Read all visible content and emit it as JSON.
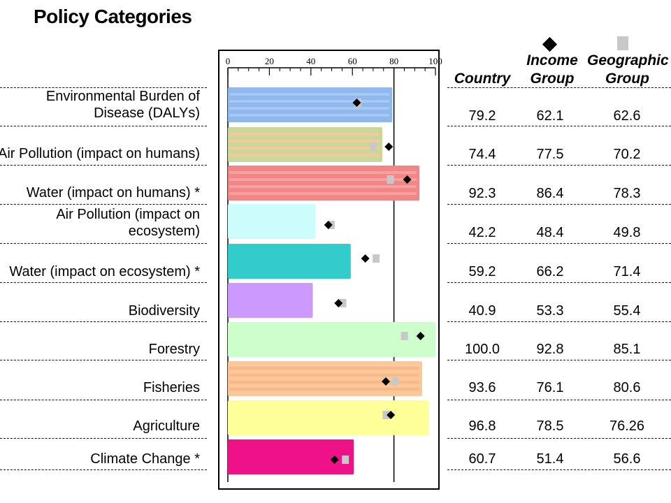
{
  "title": "Policy Categories",
  "columns": {
    "country": "Country",
    "income_group": "Income\nGroup",
    "geographic_group": "Geographic\nGroup"
  },
  "colors": {
    "income_marker": "#000000",
    "geographic_marker": "#c8c8c8"
  },
  "chart_data": {
    "type": "bar",
    "orientation": "horizontal",
    "xlim": [
      0,
      100
    ],
    "x_ticks": [
      "0",
      "20",
      "40",
      "60",
      "80",
      "100"
    ],
    "grid": "vertical-at-80",
    "categories": [
      "Environmental Burden of\nDisease (DALYs)",
      "Air Pollution (impact on humans)",
      "Water (impact on humans) *",
      "Air Pollution (impact on\necosystem)",
      "Water (impact on ecosystem) *",
      "Biodiversity",
      "Forestry",
      "Fisheries",
      "Agriculture",
      "Climate Change *"
    ],
    "series": [
      {
        "name": "Country",
        "values": [
          79.2,
          74.4,
          92.3,
          42.2,
          59.2,
          40.9,
          100.0,
          93.6,
          96.8,
          60.7
        ]
      },
      {
        "name": "Income Group",
        "values": [
          62.1,
          77.5,
          86.4,
          48.4,
          66.2,
          53.3,
          92.8,
          76.1,
          78.5,
          51.4
        ]
      },
      {
        "name": "Geographic Group",
        "values": [
          62.6,
          70.2,
          78.3,
          49.8,
          71.4,
          55.4,
          85.1,
          80.6,
          76.26,
          56.6
        ]
      }
    ],
    "value_labels": {
      "country": [
        "79.2",
        "74.4",
        "92.3",
        "42.2",
        "59.2",
        "40.9",
        "100.0",
        "93.6",
        "96.8",
        "60.7"
      ],
      "income": [
        "62.1",
        "77.5",
        "86.4",
        "48.4",
        "66.2",
        "53.3",
        "92.8",
        "76.1",
        "78.5",
        "51.4"
      ],
      "geographic": [
        "62.6",
        "70.2",
        "78.3",
        "49.8",
        "71.4",
        "55.4",
        "85.1",
        "80.6",
        "76.26",
        "56.6"
      ]
    },
    "bar_colors": [
      "#8fb8ee",
      "#c8d89a",
      "#f28585",
      "#ccfcfc",
      "#33cccc",
      "#cc99ff",
      "#ccffcc",
      "#fcc899",
      "#ffff99",
      "#ee1188"
    ],
    "bar_stripe_colors": [
      "#a8c8f4",
      "#f7c89a",
      "#f7a0a0",
      null,
      null,
      null,
      null,
      "#f8b888",
      null,
      null
    ]
  }
}
